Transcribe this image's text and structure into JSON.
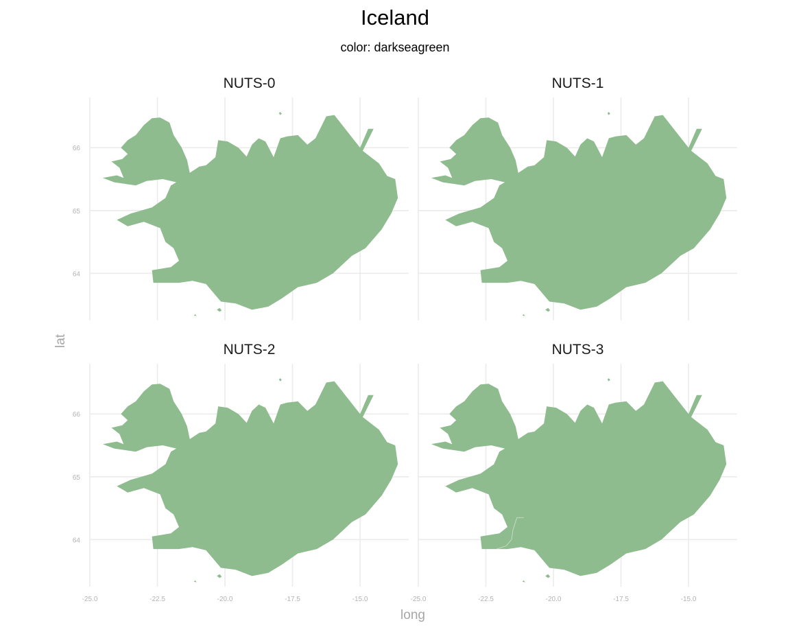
{
  "chart_data": {
    "type": "map",
    "title": "Iceland",
    "subtitle": "color: darkseagreen",
    "xlabel": "long",
    "ylabel": "lat",
    "fill_color": "#8fbc8f",
    "background": "#ffffff",
    "grid": true,
    "xlim": [
      -25.0,
      -13.2
    ],
    "ylim": [
      63.25,
      66.8
    ],
    "x_ticks": [
      -25.0,
      -22.5,
      -20.0,
      -17.5,
      -15.0
    ],
    "x_tick_labels": [
      "-25.0",
      "-22.5",
      "-20.0",
      "-17.5",
      "-15.0"
    ],
    "y_ticks": [
      64,
      65,
      66
    ],
    "y_tick_labels": [
      "64",
      "65",
      "66"
    ],
    "panels": [
      {
        "label": "NUTS-0",
        "internal_borders": false
      },
      {
        "label": "NUTS-1",
        "internal_borders": false
      },
      {
        "label": "NUTS-2",
        "internal_borders": false
      },
      {
        "label": "NUTS-3",
        "internal_borders": true
      }
    ],
    "outline": [
      [
        -24.52,
        65.52
      ],
      [
        -24.0,
        65.56
      ],
      [
        -23.75,
        65.52
      ],
      [
        -23.9,
        65.68
      ],
      [
        -24.2,
        65.78
      ],
      [
        -23.8,
        65.82
      ],
      [
        -23.6,
        65.9
      ],
      [
        -23.85,
        66.0
      ],
      [
        -23.6,
        66.12
      ],
      [
        -23.3,
        66.2
      ],
      [
        -23.0,
        66.36
      ],
      [
        -22.7,
        66.47
      ],
      [
        -22.4,
        66.48
      ],
      [
        -22.05,
        66.4
      ],
      [
        -21.9,
        66.2
      ],
      [
        -21.6,
        66.0
      ],
      [
        -21.4,
        65.8
      ],
      [
        -21.3,
        65.6
      ],
      [
        -20.95,
        65.7
      ],
      [
        -20.7,
        65.72
      ],
      [
        -20.35,
        65.85
      ],
      [
        -20.25,
        66.12
      ],
      [
        -19.9,
        66.1
      ],
      [
        -19.5,
        66.0
      ],
      [
        -19.2,
        65.86
      ],
      [
        -19.0,
        66.05
      ],
      [
        -18.75,
        66.15
      ],
      [
        -18.5,
        66.1
      ],
      [
        -18.2,
        65.85
      ],
      [
        -17.95,
        66.15
      ],
      [
        -17.7,
        66.18
      ],
      [
        -17.3,
        66.2
      ],
      [
        -16.95,
        66.05
      ],
      [
        -16.65,
        66.15
      ],
      [
        -16.25,
        66.5
      ],
      [
        -15.95,
        66.52
      ],
      [
        -15.55,
        66.3
      ],
      [
        -15.0,
        66.0
      ],
      [
        -14.7,
        66.3
      ],
      [
        -14.5,
        66.3
      ],
      [
        -14.9,
        65.95
      ],
      [
        -14.6,
        65.85
      ],
      [
        -14.3,
        65.75
      ],
      [
        -14.0,
        65.55
      ],
      [
        -13.7,
        65.5
      ],
      [
        -13.6,
        65.2
      ],
      [
        -13.85,
        64.95
      ],
      [
        -14.2,
        64.7
      ],
      [
        -14.8,
        64.4
      ],
      [
        -15.3,
        64.28
      ],
      [
        -16.0,
        64.0
      ],
      [
        -16.6,
        63.85
      ],
      [
        -17.3,
        63.78
      ],
      [
        -17.9,
        63.6
      ],
      [
        -18.4,
        63.47
      ],
      [
        -19.0,
        63.42
      ],
      [
        -19.6,
        63.52
      ],
      [
        -20.15,
        63.55
      ],
      [
        -20.7,
        63.83
      ],
      [
        -21.2,
        63.88
      ],
      [
        -21.7,
        63.85
      ],
      [
        -22.3,
        63.85
      ],
      [
        -22.65,
        63.85
      ],
      [
        -22.7,
        64.05
      ],
      [
        -22.0,
        64.1
      ],
      [
        -21.7,
        64.2
      ],
      [
        -21.9,
        64.4
      ],
      [
        -22.2,
        64.5
      ],
      [
        -22.4,
        64.72
      ],
      [
        -23.0,
        64.82
      ],
      [
        -23.6,
        64.75
      ],
      [
        -24.0,
        64.85
      ],
      [
        -23.5,
        64.95
      ],
      [
        -22.7,
        65.05
      ],
      [
        -22.2,
        65.2
      ],
      [
        -22.0,
        65.4
      ],
      [
        -21.8,
        65.45
      ],
      [
        -22.3,
        65.5
      ],
      [
        -22.9,
        65.47
      ],
      [
        -23.3,
        65.4
      ],
      [
        -24.1,
        65.45
      ]
    ],
    "islands": [
      [
        [
          -18.0,
          66.55
        ],
        [
          -17.95,
          66.57
        ],
        [
          -17.9,
          66.54
        ],
        [
          -17.96,
          66.52
        ]
      ],
      [
        [
          -20.3,
          63.42
        ],
        [
          -20.2,
          63.45
        ],
        [
          -20.12,
          63.41
        ],
        [
          -20.2,
          63.39
        ]
      ],
      [
        [
          -21.15,
          63.33
        ],
        [
          -21.1,
          63.35
        ],
        [
          -21.05,
          63.32
        ]
      ]
    ],
    "nuts3_border": [
      [
        -21.1,
        64.35
      ],
      [
        -21.35,
        64.35
      ],
      [
        -21.5,
        64.15
      ],
      [
        -21.55,
        64.0
      ],
      [
        -21.75,
        63.9
      ],
      [
        -22.1,
        63.85
      ]
    ]
  }
}
